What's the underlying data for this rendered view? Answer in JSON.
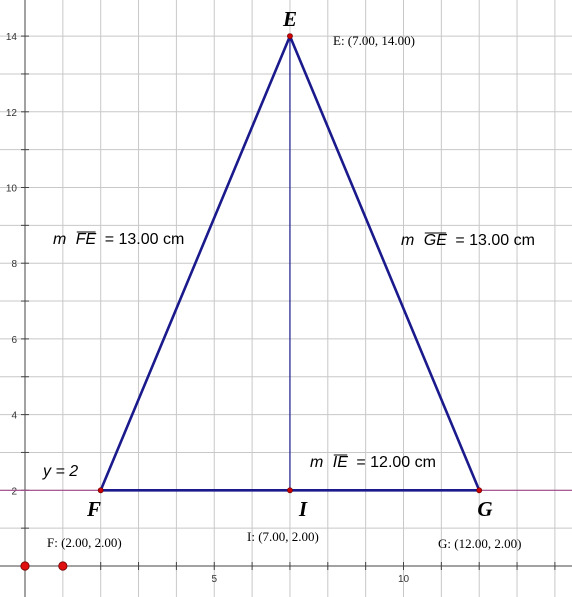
{
  "plot": {
    "x_ticks": [
      {
        "value": 5,
        "label": "5"
      },
      {
        "value": 10,
        "label": "10"
      }
    ],
    "y_ticks": [
      {
        "value": 2,
        "label": "2"
      },
      {
        "value": 4,
        "label": "4"
      },
      {
        "value": 6,
        "label": "6"
      },
      {
        "value": 8,
        "label": "8"
      },
      {
        "value": 10,
        "label": "10"
      },
      {
        "value": 12,
        "label": "12"
      },
      {
        "value": 14,
        "label": "14"
      }
    ],
    "grid": true
  },
  "points": {
    "E": {
      "name": "E",
      "x": 7,
      "y": 14,
      "coord_label": "E: (7.00, 14.00)"
    },
    "F": {
      "name": "F",
      "x": 2,
      "y": 2,
      "coord_label": "F: (2.00, 2.00)"
    },
    "G": {
      "name": "G",
      "x": 12,
      "y": 2,
      "coord_label": "G: (12.00, 2.00)"
    },
    "I": {
      "name": "I",
      "x": 7,
      "y": 2,
      "coord_label": "I: (7.00, 2.00)"
    }
  },
  "horizontal_line": {
    "equation": "y = 2",
    "y": 2
  },
  "measurements": {
    "FE": {
      "prefix": "m",
      "segment": "FE",
      "value": "= 13.00 cm"
    },
    "GE": {
      "prefix": "m",
      "segment": "GE",
      "value": "= 13.00 cm"
    },
    "IE": {
      "prefix": "m",
      "segment": "IE",
      "value": "= 12.00 cm"
    }
  },
  "slider_points": [
    {
      "x": 0
    },
    {
      "x": 1
    }
  ],
  "colors": {
    "triangle": "#1a1a8c",
    "altitude": "#1a1a8c",
    "line": "#a0488e",
    "point": "#cc0000",
    "grid": "#c8c8c8",
    "axis": "#444444"
  }
}
